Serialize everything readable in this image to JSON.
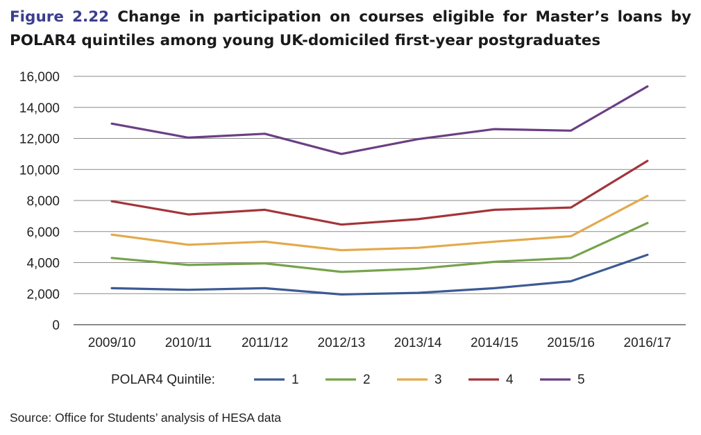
{
  "header": {
    "figure_label": "Figure 2.22",
    "title_text": "Change in participation on courses eligible for Master’s loans by POLAR4 quintiles among young UK-domiciled first-year postgraduates"
  },
  "source": "Source: Office for Students’ analysis of HESA data",
  "legend_title": "POLAR4 Quintile:",
  "chart_data": {
    "type": "line",
    "title": "",
    "xlabel": "",
    "ylabel": "",
    "categories": [
      "2009/10",
      "2010/11",
      "2011/12",
      "2012/13",
      "2013/14",
      "2014/15",
      "2015/16",
      "2016/17"
    ],
    "ylim": [
      0,
      16000
    ],
    "yticks": [
      0,
      2000,
      4000,
      6000,
      8000,
      10000,
      12000,
      14000,
      16000
    ],
    "ytick_labels": [
      "0",
      "2,000",
      "4,000",
      "6,000",
      "8,000",
      "10,000",
      "12,000",
      "14,000",
      "16,000"
    ],
    "grid": true,
    "legend_position": "bottom",
    "series": [
      {
        "name": "1",
        "color": "#3c5a94",
        "values": [
          2350,
          2250,
          2350,
          1950,
          2050,
          2350,
          2800,
          4500
        ]
      },
      {
        "name": "2",
        "color": "#76a34b",
        "values": [
          4300,
          3850,
          3950,
          3400,
          3600,
          4050,
          4300,
          6550
        ]
      },
      {
        "name": "3",
        "color": "#e3a94a",
        "values": [
          5800,
          5150,
          5350,
          4800,
          4950,
          5350,
          5700,
          8300
        ]
      },
      {
        "name": "4",
        "color": "#a3353a",
        "values": [
          7950,
          7100,
          7400,
          6450,
          6800,
          7400,
          7550,
          10550
        ]
      },
      {
        "name": "5",
        "color": "#6a3f84",
        "values": [
          12950,
          12050,
          12300,
          11000,
          11950,
          12600,
          12500,
          15350
        ]
      }
    ]
  }
}
